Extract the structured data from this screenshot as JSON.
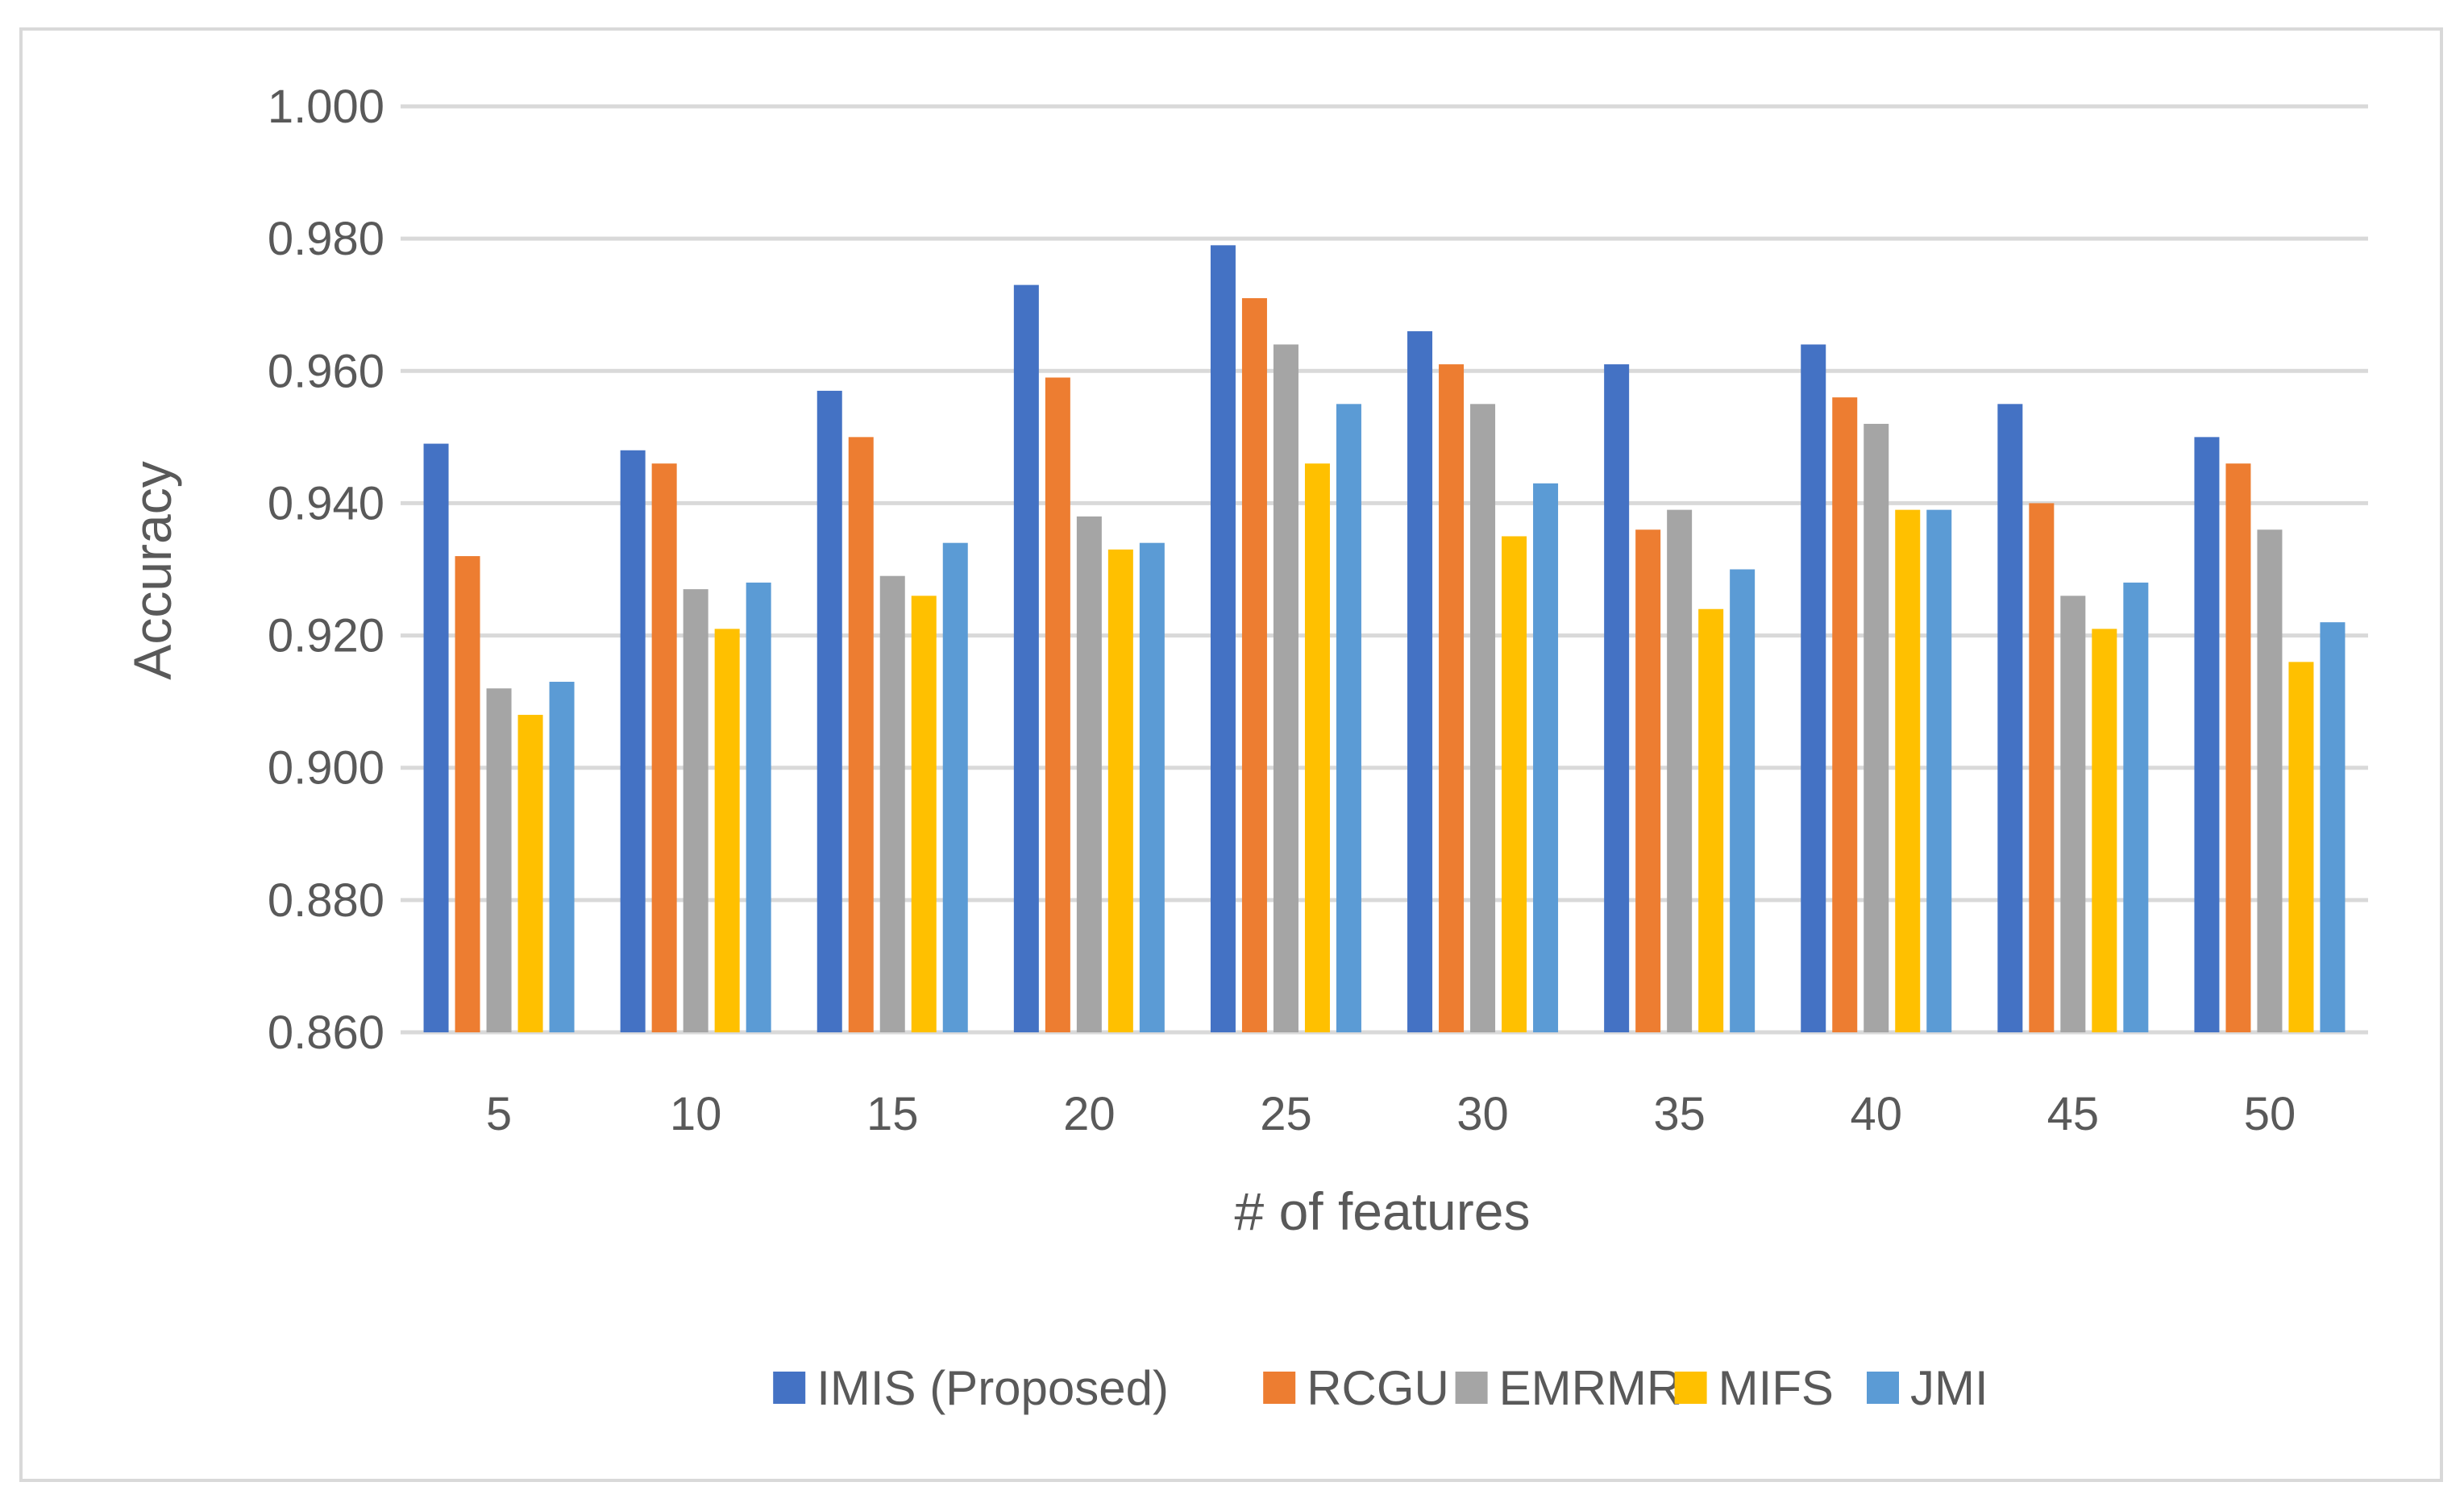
{
  "chart_data": {
    "type": "bar",
    "title": "",
    "xlabel": "# of features",
    "ylabel": "Accuracy",
    "ylim": [
      0.86,
      1.0
    ],
    "y_ticks": [
      "0.860",
      "0.880",
      "0.900",
      "0.920",
      "0.940",
      "0.960",
      "0.980",
      "1.000"
    ],
    "categories": [
      "5",
      "10",
      "15",
      "20",
      "25",
      "30",
      "35",
      "40",
      "45",
      "50"
    ],
    "legend_position": "bottom",
    "series": [
      {
        "name": "IMIS (Proposed)",
        "color": "#4472c4",
        "values": [
          0.949,
          0.948,
          0.957,
          0.973,
          0.979,
          0.966,
          0.961,
          0.964,
          0.955,
          0.95
        ]
      },
      {
        "name": "RCGU",
        "color": "#ed7d31",
        "values": [
          0.932,
          0.946,
          0.95,
          0.959,
          0.971,
          0.961,
          0.936,
          0.956,
          0.94,
          0.946
        ]
      },
      {
        "name": "EMRMR",
        "color": "#a5a5a5",
        "values": [
          0.912,
          0.927,
          0.929,
          0.938,
          0.964,
          0.955,
          0.939,
          0.952,
          0.926,
          0.936
        ]
      },
      {
        "name": "MIFS",
        "color": "#ffc000",
        "values": [
          0.908,
          0.921,
          0.926,
          0.933,
          0.946,
          0.935,
          0.924,
          0.939,
          0.921,
          0.916
        ]
      },
      {
        "name": "JMI",
        "color": "#5b9bd5",
        "values": [
          0.913,
          0.928,
          0.934,
          0.934,
          0.955,
          0.943,
          0.93,
          0.939,
          0.928,
          0.922
        ]
      }
    ]
  }
}
